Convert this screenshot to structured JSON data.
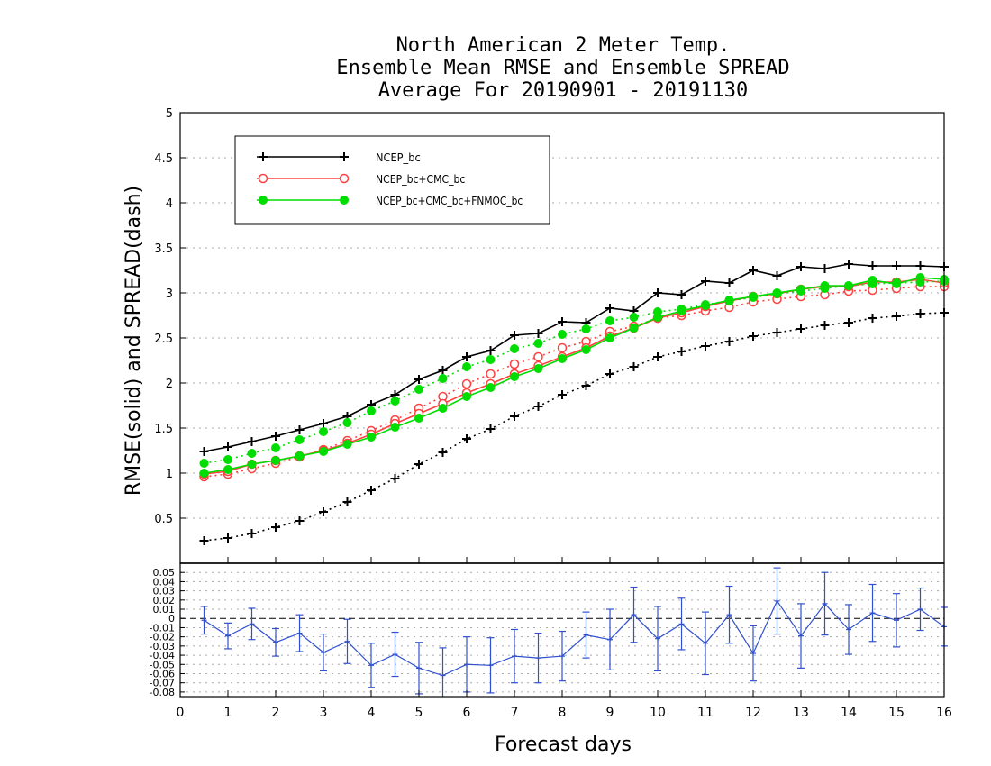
{
  "chart_data": {
    "type": "line",
    "title": [
      "North American 2 Meter Temp.",
      "Ensemble Mean RMSE and Ensemble SPREAD",
      "Average For 20190901 - 20191130"
    ],
    "xlabel": "Forecast days",
    "ylabel": "RMSE(solid) and SPREAD(dash)",
    "xlim": [
      0,
      16
    ],
    "ylim": [
      0,
      5
    ],
    "x_ticks": [
      "0",
      "1",
      "2",
      "3",
      "4",
      "5",
      "6",
      "7",
      "8",
      "9",
      "10",
      "11",
      "12",
      "13",
      "14",
      "15",
      "16"
    ],
    "y_ticks": [
      "0.5",
      "1",
      "1.5",
      "2",
      "2.5",
      "3",
      "3.5",
      "4",
      "4.5",
      "5"
    ],
    "grid": true,
    "legend_position": "top-left",
    "x": [
      0.5,
      1,
      1.5,
      2,
      2.5,
      3,
      3.5,
      4,
      4.5,
      5,
      5.5,
      6,
      6.5,
      7,
      7.5,
      8,
      8.5,
      9,
      9.5,
      10,
      10.5,
      11,
      11.5,
      12,
      12.5,
      13,
      13.5,
      14,
      14.5,
      15,
      15.5,
      16
    ],
    "series": [
      {
        "name": "NCEP_bc",
        "color": "#000000",
        "marker": "plus",
        "rmse": [
          1.24,
          1.29,
          1.35,
          1.41,
          1.48,
          1.55,
          1.63,
          1.76,
          1.87,
          2.04,
          2.14,
          2.29,
          2.36,
          2.53,
          2.55,
          2.68,
          2.67,
          2.83,
          2.8,
          3.0,
          2.98,
          3.13,
          3.11,
          3.25,
          3.19,
          3.29,
          3.27,
          3.32,
          3.3,
          3.3,
          3.3,
          3.29
        ],
        "spread": [
          0.25,
          0.28,
          0.33,
          0.4,
          0.47,
          0.57,
          0.68,
          0.81,
          0.94,
          1.1,
          1.23,
          1.38,
          1.49,
          1.63,
          1.74,
          1.87,
          1.97,
          2.1,
          2.18,
          2.29,
          2.35,
          2.41,
          2.46,
          2.52,
          2.56,
          2.6,
          2.64,
          2.67,
          2.72,
          2.74,
          2.77,
          2.78
        ]
      },
      {
        "name": "NCEP_bc+CMC_bc",
        "color": "#ff4040",
        "marker": "open-circle",
        "rmse": [
          0.99,
          1.02,
          1.1,
          1.14,
          1.19,
          1.25,
          1.33,
          1.43,
          1.55,
          1.66,
          1.77,
          1.89,
          1.99,
          2.1,
          2.19,
          2.29,
          2.39,
          2.52,
          2.61,
          2.72,
          2.78,
          2.85,
          2.91,
          2.96,
          2.99,
          3.04,
          3.07,
          3.07,
          3.12,
          3.12,
          3.15,
          3.11
        ],
        "spread": [
          0.96,
          0.99,
          1.05,
          1.11,
          1.18,
          1.26,
          1.36,
          1.47,
          1.59,
          1.72,
          1.85,
          1.99,
          2.1,
          2.21,
          2.29,
          2.39,
          2.46,
          2.57,
          2.63,
          2.72,
          2.75,
          2.8,
          2.84,
          2.9,
          2.93,
          2.96,
          2.98,
          3.02,
          3.03,
          3.05,
          3.07,
          3.07
        ]
      },
      {
        "name": "NCEP_bc+CMC_bc+FNMOC_bc",
        "color": "#00dd00",
        "marker": "filled-circle",
        "rmse": [
          1.0,
          1.04,
          1.1,
          1.14,
          1.19,
          1.24,
          1.32,
          1.4,
          1.51,
          1.61,
          1.72,
          1.85,
          1.95,
          2.07,
          2.16,
          2.27,
          2.37,
          2.5,
          2.61,
          2.73,
          2.8,
          2.86,
          2.92,
          2.96,
          3.0,
          3.04,
          3.08,
          3.08,
          3.14,
          3.1,
          3.17,
          3.15
        ],
        "spread": [
          1.11,
          1.15,
          1.22,
          1.28,
          1.37,
          1.46,
          1.56,
          1.69,
          1.8,
          1.93,
          2.05,
          2.18,
          2.26,
          2.38,
          2.44,
          2.54,
          2.6,
          2.69,
          2.73,
          2.79,
          2.82,
          2.87,
          2.91,
          2.95,
          2.99,
          3.02,
          3.05,
          3.08,
          3.1,
          3.11,
          3.12,
          3.13
        ]
      }
    ],
    "diff_panel": {
      "type": "line-errorbar",
      "ylim": [
        -0.085,
        0.06
      ],
      "y_ticks": [
        "0.05",
        "0.04",
        "0.03",
        "0.02",
        "0.01",
        "0",
        "-0.01",
        "-0.02",
        "-0.03",
        "-0.04",
        "-0.05",
        "-0.06",
        "-0.07",
        "-0.08"
      ],
      "zero_line": true,
      "color": "#3050d0",
      "x": [
        0.5,
        1,
        1.5,
        2,
        2.5,
        3,
        3.5,
        4,
        4.5,
        5,
        5.5,
        6,
        6.5,
        7,
        7.5,
        8,
        8.5,
        9,
        9.5,
        10,
        10.5,
        11,
        11.5,
        12,
        12.5,
        13,
        13.5,
        14,
        14.5,
        15,
        15.5,
        16
      ],
      "values": [
        -0.002,
        -0.019,
        -0.006,
        -0.026,
        -0.016,
        -0.037,
        -0.025,
        -0.051,
        -0.039,
        -0.054,
        -0.062,
        -0.05,
        -0.051,
        -0.041,
        -0.043,
        -0.041,
        -0.018,
        -0.023,
        0.004,
        -0.022,
        -0.006,
        -0.027,
        0.004,
        -0.038,
        0.019,
        -0.019,
        0.016,
        -0.012,
        0.006,
        -0.002,
        0.01,
        -0.009
      ],
      "err": [
        0.015,
        0.014,
        0.017,
        0.015,
        0.02,
        0.02,
        0.024,
        0.024,
        0.024,
        0.028,
        0.03,
        0.03,
        0.03,
        0.029,
        0.027,
        0.027,
        0.025,
        0.033,
        0.03,
        0.035,
        0.028,
        0.034,
        0.031,
        0.03,
        0.036,
        0.035,
        0.034,
        0.027,
        0.031,
        0.029,
        0.023,
        0.021
      ]
    }
  }
}
